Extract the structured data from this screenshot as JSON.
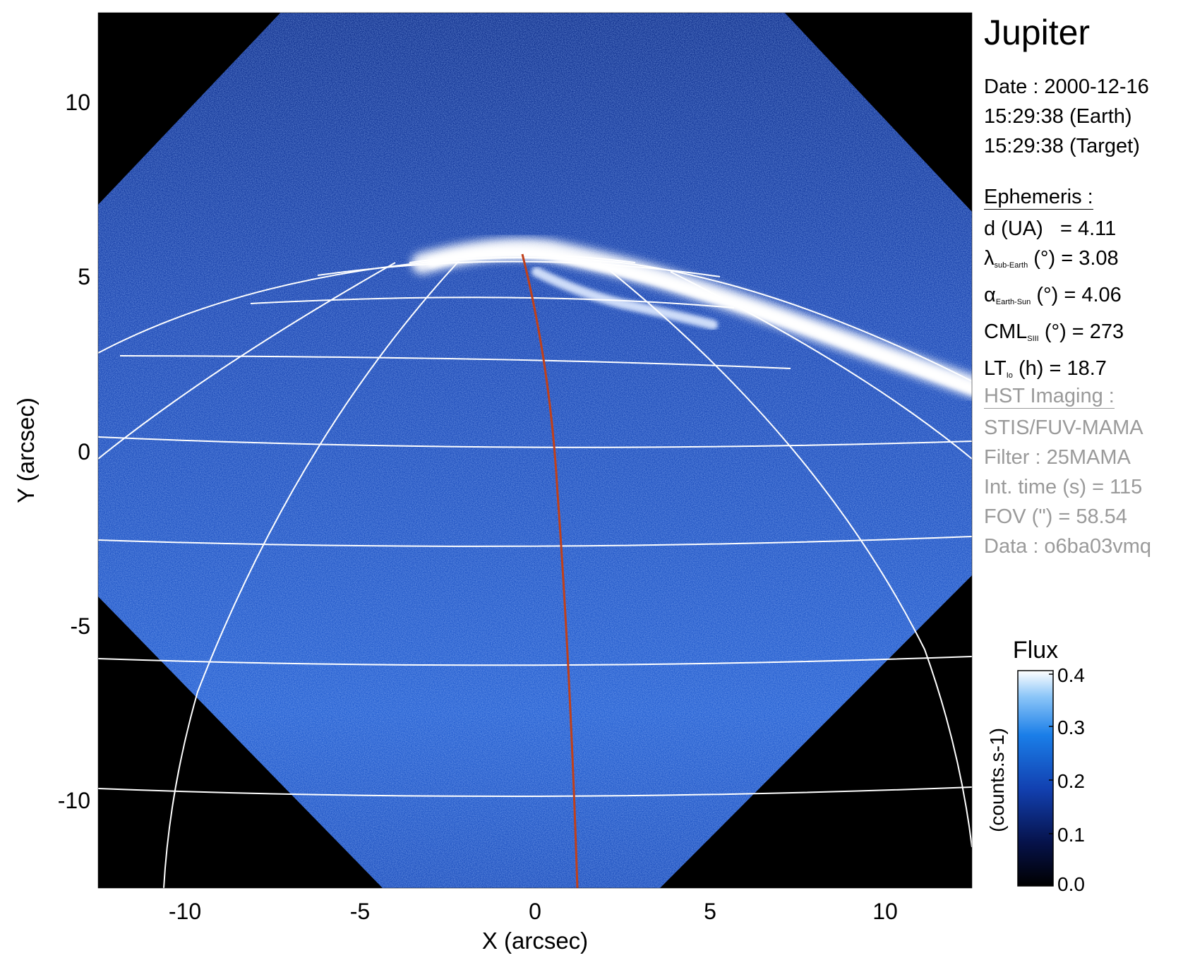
{
  "title": "Jupiter",
  "date_block": {
    "date": "Date : 2000-12-16",
    "time_earth": "15:29:38 (Earth)",
    "time_target": "15:29:38 (Target)"
  },
  "ephemeris": {
    "heading": "Ephemeris :",
    "d_label": "d (UA)",
    "d_value": "= 4.11",
    "lambda_symbol": "λ",
    "lambda_sub": "sub-Earth",
    "lambda_value": "(°) = 3.08",
    "alpha_symbol": "α",
    "alpha_sub": "Earth-Sun",
    "alpha_value": "(°) = 4.06",
    "cml_symbol": "CML",
    "cml_sub": "SIII",
    "cml_value": "(°) = 273",
    "lt_symbol": "LT",
    "lt_sub": "Io",
    "lt_value": "(h) = 18.7"
  },
  "hst": {
    "heading": "HST Imaging :",
    "instrument": "STIS/FUV-MAMA",
    "filter": "Filter : 25MAMA",
    "int_time": "Int. time (s) = 115",
    "fov": "FOV (\") = 58.54",
    "data": "Data : o6ba03vmq"
  },
  "axes": {
    "xlabel": "X (arcsec)",
    "ylabel": "Y (arcsec)",
    "xticks": [
      "-10",
      "-5",
      "0",
      "5",
      "10"
    ],
    "yticks": [
      "10",
      "5",
      "0",
      "-5",
      "-10"
    ],
    "xlim": [
      -12.5,
      12.5
    ],
    "ylim": [
      -12.5,
      12.5
    ]
  },
  "colorbar": {
    "title": "Flux",
    "label": "(counts.s-1)",
    "ticks": [
      "0.4",
      "0.3",
      "0.2",
      "0.1",
      "0.0"
    ],
    "range": [
      0.0,
      0.4
    ]
  },
  "colors": {
    "background_sky": "#000000",
    "image_blue": "#1f54c4",
    "grid": "#ffffff",
    "io_footprint": "#c0401a",
    "aurora": "#ffffff"
  }
}
